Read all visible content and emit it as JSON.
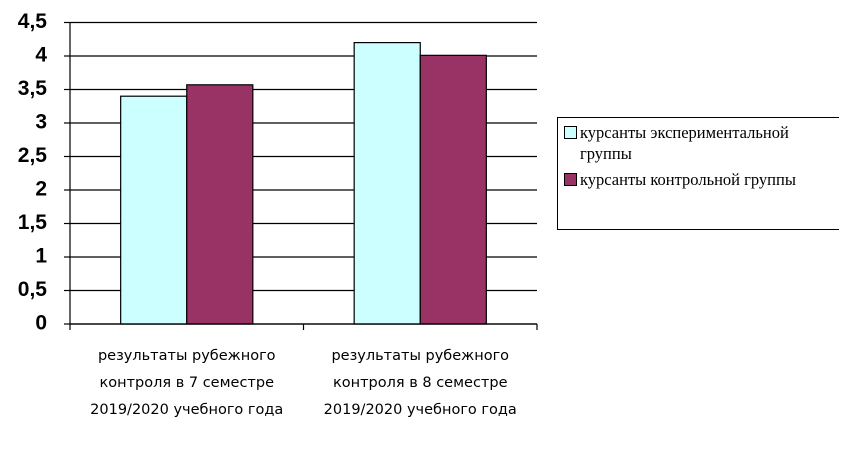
{
  "chart_data": {
    "type": "bar",
    "categories": [
      "результаты рубежного контроля в 7 семестре 2019/2020 учебного года",
      "результаты рубежного контроля в 8 семестре 2019/2020 учебного года"
    ],
    "series": [
      {
        "name": "курсанты экспериментальной группы",
        "color": "#ccffff",
        "values": [
          3.4,
          4.2
        ]
      },
      {
        "name": "курсанты контрольной группы",
        "color": "#993366",
        "values": [
          3.57,
          4.01
        ]
      }
    ],
    "ylim": [
      0,
      4.5
    ],
    "yticks": [
      0,
      {
        "value": 0.5,
        "label": "0,5"
      },
      1,
      {
        "value": 1.5,
        "label": "1,5"
      },
      2,
      {
        "value": 2.5,
        "label": "2,5"
      },
      3,
      {
        "value": 3.5,
        "label": "3,5"
      },
      4,
      {
        "value": 4.5,
        "label": "4,5"
      }
    ],
    "grid": true,
    "legend": "right"
  }
}
